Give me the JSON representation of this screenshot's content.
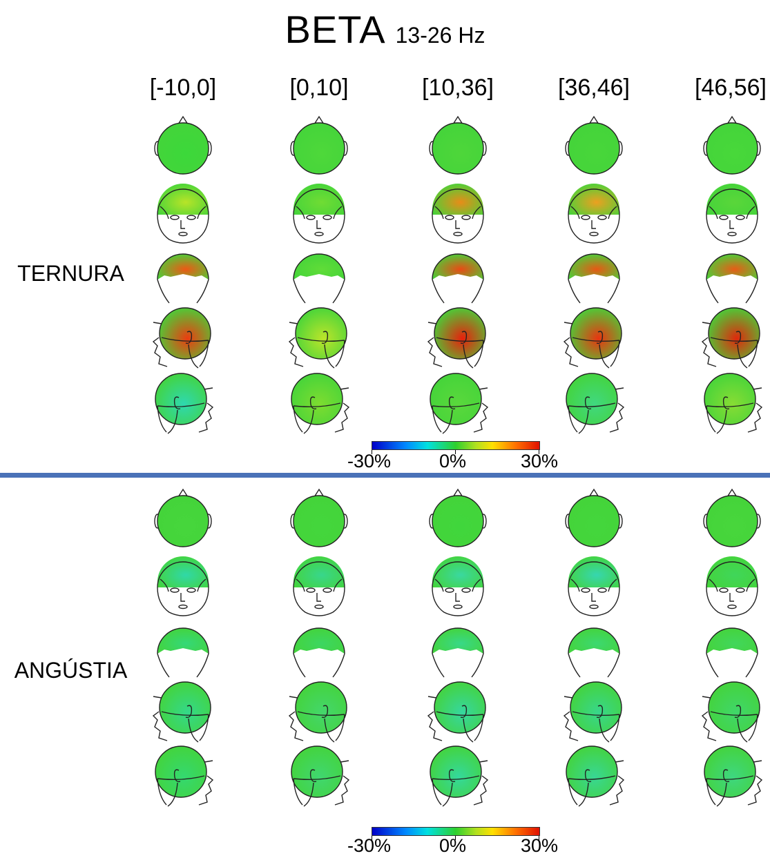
{
  "title": {
    "main": "BETA",
    "sub": "13-26 Hz"
  },
  "columns": [
    "[-10,0]",
    "[0,10]",
    "[10,36]",
    "[36,46]",
    "[46,56]"
  ],
  "conditions": [
    {
      "label": "TERNURA",
      "maps": [
        [
          "#3cd83a",
          "#4ed83a",
          "#4ed63a",
          "#48d63a",
          "#48d83a"
        ],
        [
          "#b8e428",
          "#70dc34",
          "#e88c18",
          "#eca020",
          "#5ad63a"
        ],
        [
          "#ee5814",
          "#60dc38",
          "#ea4a14",
          "#e85814",
          "#e85c16"
        ],
        [
          "#ec3c10",
          "#bce42a",
          "#e8200c",
          "#ea3410",
          "#e0280c"
        ],
        [
          "#2ed8b0",
          "#7edc30",
          "#5ad83c",
          "#40d880",
          "#88dc34"
        ]
      ]
    },
    {
      "label": "ANGÚSTIA",
      "maps": [
        [
          "#46d63c",
          "#44d63c",
          "#40d63c",
          "#44d63c",
          "#48d63c"
        ],
        [
          "#30d8a8",
          "#38d68c",
          "#3ad8a0",
          "#36d6b0",
          "#40d65a"
        ],
        [
          "#34d878",
          "#3cd662",
          "#38d888",
          "#3cd870",
          "#42d65c"
        ],
        [
          "#34d88a",
          "#44d66c",
          "#36d6a0",
          "#38d68c",
          "#40d66a"
        ],
        [
          "#34d870",
          "#40d670",
          "#34d89c",
          "#38d694",
          "#3ed680"
        ]
      ]
    }
  ],
  "colorbar": {
    "min_label": "-30%",
    "mid_label": "0%",
    "max_label": "30%",
    "stops": [
      "#0000c8",
      "#0088ff",
      "#00e0e0",
      "#2ed02e",
      "#b0e020",
      "#ffe000",
      "#ff7000",
      "#e01000"
    ]
  },
  "views": [
    "top",
    "front",
    "back",
    "left",
    "right"
  ]
}
